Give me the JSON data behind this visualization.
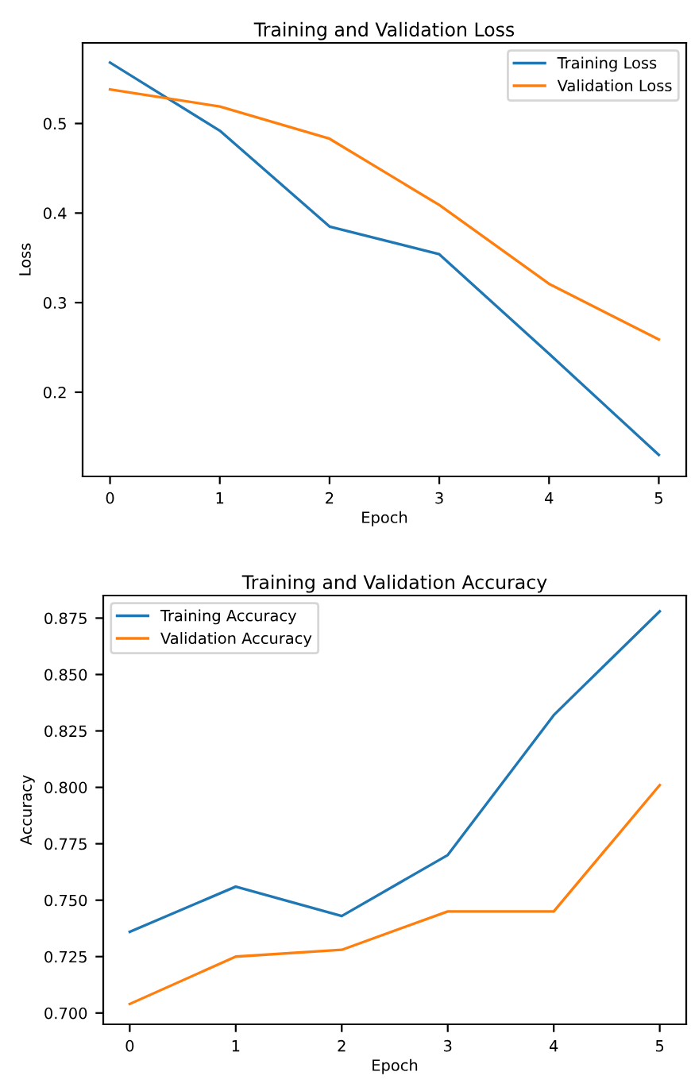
{
  "chart_data": [
    {
      "type": "line",
      "title": "Training and Validation Loss",
      "xlabel": "Epoch",
      "ylabel": "Loss",
      "x": [
        0,
        1,
        2,
        3,
        4,
        5
      ],
      "series": [
        {
          "name": "Training Loss",
          "color": "#1f77b4",
          "values": [
            0.568,
            0.492,
            0.385,
            0.354,
            0.243,
            0.13
          ]
        },
        {
          "name": "Validation Loss",
          "color": "#ff7f0e",
          "values": [
            0.538,
            0.519,
            0.483,
            0.409,
            0.321,
            0.259
          ]
        }
      ],
      "xlim": [
        -0.25,
        5.25
      ],
      "ylim": [
        0.106,
        0.59
      ],
      "xticks": [
        0,
        1,
        2,
        3,
        4,
        5
      ],
      "yticks": [
        0.2,
        0.3,
        0.4,
        0.5
      ],
      "legend": "top right",
      "grid": false
    },
    {
      "type": "line",
      "title": "Training and Validation Accuracy",
      "xlabel": "Epoch",
      "ylabel": "Accuracy",
      "x": [
        0,
        1,
        2,
        3,
        4,
        5
      ],
      "series": [
        {
          "name": "Training Accuracy",
          "color": "#1f77b4",
          "values": [
            0.736,
            0.756,
            0.743,
            0.77,
            0.832,
            0.878
          ]
        },
        {
          "name": "Validation Accuracy",
          "color": "#ff7f0e",
          "values": [
            0.704,
            0.725,
            0.728,
            0.745,
            0.745,
            0.801
          ]
        }
      ],
      "xlim": [
        -0.25,
        5.25
      ],
      "ylim": [
        0.695,
        0.885
      ],
      "xticks": [
        0,
        1,
        2,
        3,
        4,
        5
      ],
      "yticks": [
        {
          "value": 0.7,
          "label": "0.700"
        },
        0.725,
        {
          "value": 0.75,
          "label": "0.750"
        },
        0.775,
        {
          "value": 0.8,
          "label": "0.800"
        },
        0.825,
        {
          "value": 0.85,
          "label": "0.850"
        },
        0.875
      ],
      "legend": "top left",
      "grid": false
    }
  ]
}
